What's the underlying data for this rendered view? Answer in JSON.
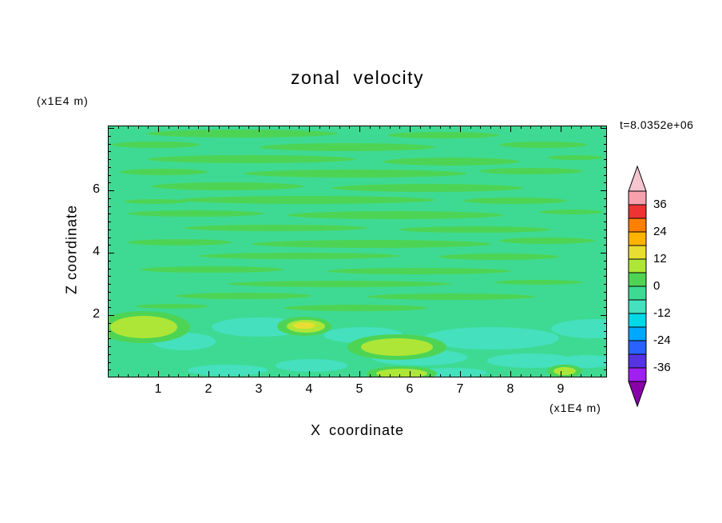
{
  "header": {
    "title": "zonal velocity",
    "y_unit": "(x1E4 m)",
    "time": "t=8.0352e+06"
  },
  "axes": {
    "x_label": "X coordinate",
    "x_unit": "(x1E4 m)",
    "y_label": "Z coordinate"
  },
  "chart_data": {
    "type": "contour",
    "title": "zonal velocity",
    "xlabel": "X coordinate",
    "ylabel": "Z coordinate",
    "x_unit": "(x1E4 m)",
    "y_unit": "(x1E4 m)",
    "time_annotation": "t=8.0352e+06",
    "x_range": [
      0,
      9.9
    ],
    "y_range": [
      0,
      8.1
    ],
    "x_ticks": [
      1,
      2,
      3,
      4,
      5,
      6,
      7,
      8,
      9
    ],
    "y_ticks": [
      2,
      4,
      6
    ],
    "contour_levels": [
      -42,
      -36,
      -30,
      -24,
      -18,
      -12,
      -6,
      0,
      6,
      12,
      18,
      24,
      30,
      36,
      42
    ],
    "colorbar_labels": [
      "36",
      "24",
      "12",
      "0",
      "-12",
      "-24",
      "-36"
    ],
    "colorbar_colors_top_to_bottom": [
      "#F8A0AC",
      "#EE3333",
      "#FF7F00",
      "#FFB300",
      "#E8DE33",
      "#AEE637",
      "#4ED455",
      "#3EDA93",
      "#45E0BE",
      "#00D8E8",
      "#00A8FF",
      "#2A62FF",
      "#5533E0",
      "#A020F0"
    ],
    "colorbar_arrow_top": "#F5C6D0",
    "colorbar_arrow_bottom": "#8800A8",
    "field_colors": {
      "base": "#3EDA93",
      "streak": "#4ED455",
      "pale": "#45E0BE",
      "yellow_green": "#AEE637",
      "yellow": "#E8DE33"
    },
    "description": "Filled contour field of zonal velocity; values mostly in the -6..6 band (greens) with thin horizontal streaks of the adjacent band, paler turquoise patches and yellow-green (6..18) blobs near the lower boundary.",
    "features": [
      {
        "band": "streak",
        "e": [
          168,
          10,
          120,
          5
        ]
      },
      {
        "band": "streak",
        "e": [
          420,
          12,
          70,
          4
        ]
      },
      {
        "band": "streak",
        "e": [
          60,
          24,
          55,
          4
        ]
      },
      {
        "band": "streak",
        "e": [
          300,
          27,
          110,
          5
        ]
      },
      {
        "band": "streak",
        "e": [
          545,
          24,
          55,
          4
        ]
      },
      {
        "band": "streak",
        "e": [
          180,
          42,
          130,
          5
        ]
      },
      {
        "band": "streak",
        "e": [
          430,
          45,
          85,
          5
        ]
      },
      {
        "band": "streak",
        "e": [
          585,
          40,
          35,
          3
        ]
      },
      {
        "band": "streak",
        "e": [
          70,
          58,
          55,
          4
        ]
      },
      {
        "band": "streak",
        "e": [
          310,
          60,
          140,
          5
        ]
      },
      {
        "band": "streak",
        "e": [
          530,
          57,
          65,
          4
        ]
      },
      {
        "band": "streak",
        "e": [
          150,
          76,
          95,
          5
        ]
      },
      {
        "band": "streak",
        "e": [
          400,
          78,
          120,
          5
        ]
      },
      {
        "band": "streak",
        "e": [
          250,
          93,
          160,
          5
        ]
      },
      {
        "band": "streak",
        "e": [
          510,
          94,
          65,
          4
        ]
      },
      {
        "band": "streak",
        "e": [
          60,
          95,
          40,
          3
        ]
      },
      {
        "band": "streak",
        "e": [
          110,
          110,
          85,
          4
        ]
      },
      {
        "band": "streak",
        "e": [
          360,
          112,
          135,
          5
        ]
      },
      {
        "band": "streak",
        "e": [
          580,
          108,
          40,
          3
        ]
      },
      {
        "band": "streak",
        "e": [
          210,
          128,
          115,
          4
        ]
      },
      {
        "band": "streak",
        "e": [
          460,
          130,
          95,
          4
        ]
      },
      {
        "band": "streak",
        "e": [
          90,
          146,
          65,
          4
        ]
      },
      {
        "band": "streak",
        "e": [
          330,
          148,
          150,
          5
        ]
      },
      {
        "band": "streak",
        "e": [
          550,
          144,
          60,
          4
        ]
      },
      {
        "band": "streak",
        "e": [
          240,
          163,
          125,
          4
        ]
      },
      {
        "band": "streak",
        "e": [
          490,
          164,
          75,
          4
        ]
      },
      {
        "band": "streak",
        "e": [
          130,
          180,
          90,
          4
        ]
      },
      {
        "band": "streak",
        "e": [
          390,
          182,
          115,
          4
        ]
      },
      {
        "band": "streak",
        "e": [
          290,
          198,
          140,
          4
        ]
      },
      {
        "band": "streak",
        "e": [
          540,
          196,
          55,
          3
        ]
      },
      {
        "band": "streak",
        "e": [
          170,
          213,
          85,
          4
        ]
      },
      {
        "band": "streak",
        "e": [
          430,
          214,
          105,
          4
        ]
      },
      {
        "band": "streak",
        "e": [
          310,
          228,
          90,
          4
        ]
      },
      {
        "band": "streak",
        "e": [
          80,
          226,
          45,
          3
        ]
      },
      {
        "band": "pale",
        "e": [
          190,
          252,
          60,
          12
        ]
      },
      {
        "band": "pale",
        "e": [
          320,
          262,
          50,
          10
        ]
      },
      {
        "band": "pale",
        "e": [
          480,
          266,
          85,
          14
        ]
      },
      {
        "band": "pale",
        "e": [
          610,
          254,
          55,
          12
        ]
      },
      {
        "band": "pale",
        "e": [
          95,
          270,
          40,
          11
        ]
      },
      {
        "band": "pale",
        "e": [
          390,
          290,
          60,
          10
        ]
      },
      {
        "band": "pale",
        "e": [
          530,
          294,
          55,
          9
        ]
      },
      {
        "band": "pale",
        "e": [
          255,
          300,
          45,
          8
        ]
      },
      {
        "band": "pale",
        "e": [
          600,
          295,
          35,
          8
        ]
      },
      {
        "band": "pale",
        "e": [
          150,
          306,
          50,
          7
        ]
      },
      {
        "band": "pale",
        "e": [
          430,
          309,
          45,
          6
        ]
      },
      {
        "band": "streak",
        "e": [
          45,
          252,
          58,
          20
        ]
      },
      {
        "band": "streak",
        "e": [
          246,
          251,
          34,
          12
        ]
      },
      {
        "band": "streak",
        "e": [
          362,
          277,
          62,
          16
        ]
      },
      {
        "band": "streak",
        "e": [
          368,
          310,
          44,
          9
        ]
      },
      {
        "band": "streak",
        "e": [
          572,
          307,
          22,
          8
        ]
      },
      {
        "band": "yellow_green",
        "e": [
          45,
          252,
          42,
          14
        ]
      },
      {
        "band": "yellow_green",
        "e": [
          248,
          251,
          24,
          8
        ]
      },
      {
        "band": "yellow_green",
        "e": [
          362,
          277,
          45,
          11
        ]
      },
      {
        "band": "yellow_green",
        "e": [
          368,
          310,
          32,
          6
        ]
      },
      {
        "band": "yellow_green",
        "e": [
          572,
          307,
          14,
          5
        ]
      },
      {
        "band": "yellow",
        "e": [
          246,
          250,
          14,
          4
        ]
      }
    ]
  }
}
